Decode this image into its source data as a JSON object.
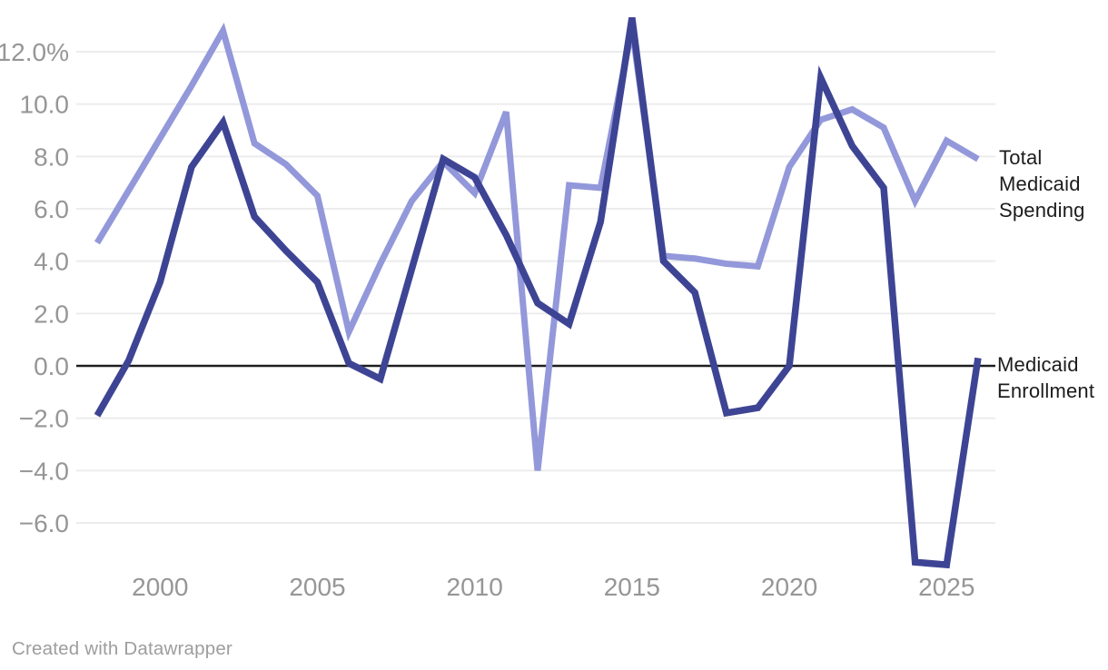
{
  "footer": {
    "credit": "Created with Datawrapper"
  },
  "colors": {
    "spending": "#9398DA",
    "enrollment": "#3E4494",
    "grid": "#ECECEC",
    "zero_line": "#1F1F1F",
    "tick_text": "#969696",
    "label_text": "#1C1C1C"
  },
  "chart_data": {
    "type": "line",
    "x": [
      1998,
      1999,
      2000,
      2001,
      2002,
      2003,
      2004,
      2005,
      2006,
      2007,
      2008,
      2009,
      2010,
      2011,
      2012,
      2013,
      2014,
      2015,
      2016,
      2017,
      2018,
      2019,
      2020,
      2021,
      2022,
      2023,
      2024,
      2025,
      2026
    ],
    "series": [
      {
        "name": "Total Medicaid Spending",
        "label_lines": [
          "Total",
          "Medicaid",
          "Spending"
        ],
        "color_key": "spending",
        "values": [
          4.7,
          6.7,
          8.7,
          10.7,
          12.8,
          8.5,
          7.7,
          6.5,
          1.3,
          3.9,
          6.3,
          7.8,
          6.6,
          9.7,
          -4.0,
          6.9,
          6.8,
          12.9,
          4.2,
          4.1,
          3.9,
          3.8,
          7.6,
          9.4,
          9.8,
          9.1,
          6.3,
          8.6,
          7.9
        ]
      },
      {
        "name": "Medicaid Enrollment",
        "label_lines": [
          "Medicaid",
          "Enrollment"
        ],
        "color_key": "enrollment",
        "values": [
          -1.9,
          0.2,
          3.2,
          7.6,
          9.3,
          5.7,
          4.4,
          3.2,
          0.1,
          -0.5,
          3.7,
          7.9,
          7.2,
          5.0,
          2.4,
          1.6,
          5.5,
          13.3,
          4.0,
          2.8,
          -1.8,
          -1.6,
          0.0,
          11.0,
          8.4,
          6.8,
          -7.5,
          -7.6,
          0.3
        ]
      }
    ],
    "y_ticks": [
      {
        "value": 12,
        "label": "12.0%"
      },
      {
        "value": 10,
        "label": "10.0"
      },
      {
        "value": 8,
        "label": "8.0"
      },
      {
        "value": 6,
        "label": "6.0"
      },
      {
        "value": 4,
        "label": "4.0"
      },
      {
        "value": 2,
        "label": "2.0"
      },
      {
        "value": 0,
        "label": "0.0"
      },
      {
        "value": -2,
        "label": "−2.0"
      },
      {
        "value": -4,
        "label": "−4.0"
      },
      {
        "value": -6,
        "label": "−6.0"
      }
    ],
    "x_ticks": [
      {
        "value": 2000,
        "label": "2000"
      },
      {
        "value": 2005,
        "label": "2005"
      },
      {
        "value": 2010,
        "label": "2010"
      },
      {
        "value": 2015,
        "label": "2015"
      },
      {
        "value": 2020,
        "label": "2020"
      },
      {
        "value": 2025,
        "label": "2025"
      }
    ],
    "xlim": [
      1998,
      2026
    ],
    "ylim": [
      -7.6,
      13.3
    ],
    "grid": "horizontal",
    "legend_position": "right-edge-labels"
  }
}
